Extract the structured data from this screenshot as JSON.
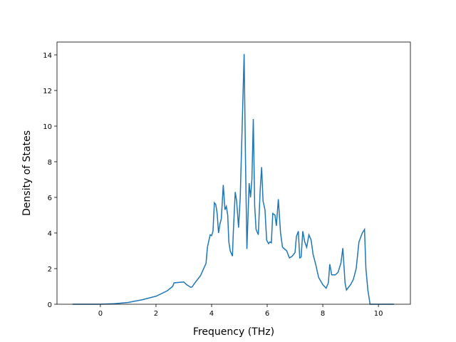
{
  "chart_data": {
    "type": "line",
    "x_label": "Frequency (THz)",
    "y_label": "Density of States",
    "x": [
      -1,
      0,
      0.5,
      1,
      1.5,
      2,
      2.4,
      2.6,
      2.65,
      3.0,
      3.1,
      3.25,
      3.3,
      3.4,
      3.6,
      3.8,
      3.85,
      3.95,
      4.0,
      4.05,
      4.1,
      4.15,
      4.2,
      4.25,
      4.3,
      4.35,
      4.42,
      4.48,
      4.53,
      4.58,
      4.62,
      4.67,
      4.75,
      4.78,
      4.85,
      4.9,
      4.97,
      5.03,
      5.1,
      5.17,
      5.22,
      5.27,
      5.35,
      5.4,
      5.45,
      5.5,
      5.55,
      5.6,
      5.68,
      5.75,
      5.8,
      5.85,
      5.92,
      5.98,
      6.05,
      6.1,
      6.15,
      6.2,
      6.28,
      6.33,
      6.4,
      6.48,
      6.55,
      6.7,
      6.8,
      6.9,
      7.0,
      7.05,
      7.12,
      7.17,
      7.22,
      7.28,
      7.35,
      7.42,
      7.5,
      7.58,
      7.65,
      7.75,
      7.85,
      8.0,
      8.12,
      8.2,
      8.25,
      8.32,
      8.45,
      8.55,
      8.65,
      8.72,
      8.8,
      8.85,
      9.0,
      9.1,
      9.2,
      9.3,
      9.42,
      9.5,
      9.55,
      9.62,
      9.7,
      10.56
    ],
    "series": [
      {
        "color": "#1f77b4",
        "values": [
          0,
          0,
          0.03,
          0.1,
          0.25,
          0.45,
          0.75,
          1.0,
          1.2,
          1.25,
          1.1,
          0.95,
          0.97,
          1.2,
          1.6,
          2.3,
          3.2,
          3.9,
          3.85,
          4.1,
          5.7,
          5.6,
          5.1,
          4.0,
          4.5,
          4.8,
          6.7,
          5.3,
          5.5,
          5.0,
          3.5,
          3.0,
          2.7,
          4.0,
          6.3,
          5.8,
          4.3,
          6.0,
          10.0,
          14.05,
          8.0,
          3.1,
          6.8,
          6.0,
          7.0,
          10.4,
          5.5,
          4.2,
          3.9,
          6.5,
          7.7,
          5.8,
          5.3,
          3.6,
          3.4,
          3.5,
          3.45,
          5.1,
          5.0,
          4.4,
          5.9,
          4.0,
          3.2,
          3.0,
          2.6,
          2.7,
          2.9,
          3.8,
          4.1,
          2.6,
          2.65,
          4.1,
          3.5,
          3.2,
          3.9,
          3.6,
          2.8,
          2.2,
          1.5,
          1.1,
          0.9,
          1.2,
          2.25,
          1.65,
          1.65,
          1.8,
          2.3,
          3.15,
          1.2,
          0.8,
          1.1,
          1.4,
          2.0,
          3.5,
          4.0,
          4.2,
          2.0,
          0.8,
          0,
          0
        ]
      }
    ],
    "xlim": [
      -1.56,
      11.15
    ],
    "ylim": [
      0,
      14.72
    ],
    "xticks": [
      0,
      2,
      4,
      6,
      8,
      10
    ],
    "yticks": [
      0,
      2,
      4,
      6,
      8,
      10,
      12,
      14
    ]
  }
}
